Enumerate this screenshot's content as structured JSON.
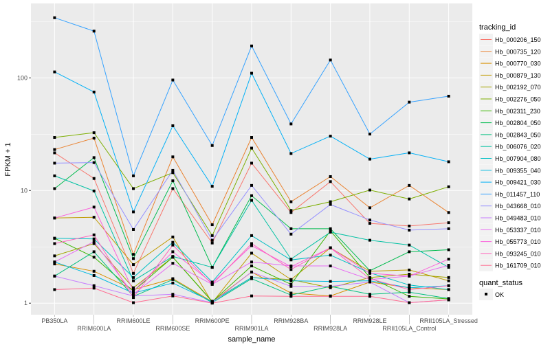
{
  "chart_data": {
    "type": "line",
    "xlabel": "sample_name",
    "ylabel": "FPKM + 1",
    "y_scale": "log10",
    "ylim": [
      0.79,
      458
    ],
    "y_ticks": [
      1,
      10,
      100
    ],
    "y_tick_labels": [
      "1",
      "10",
      "100"
    ],
    "grid": true,
    "categories": [
      "PB350LA",
      "RRIM600LA",
      "RRIM600LE",
      "RRIM600SE",
      "RRIM600PE",
      "RRIM901LA",
      "RRIM928BA",
      "RRIM928LA",
      "RRIM928LE",
      "RRII105LA_Control",
      "RRII105LA_Stressed"
    ],
    "legend_position": "right",
    "legend_title": "tracking_id",
    "shape_legend_title": "quant_status",
    "shape_legend_items": [
      "OK"
    ],
    "series": [
      {
        "name": "Hb_000206_150",
        "color": "#F8766D",
        "values": [
          21.6,
          12.8,
          1.84,
          10.4,
          3.42,
          17.5,
          6.38,
          12.0,
          5.11,
          4.84,
          5.18
        ]
      },
      {
        "name": "Hb_000735_120",
        "color": "#EA8331",
        "values": [
          23.1,
          29.2,
          2.71,
          19.9,
          4.97,
          29.6,
          7.95,
          13.3,
          7.03,
          11.1,
          6.38
        ]
      },
      {
        "name": "Hb_000770_030",
        "color": "#D89000",
        "values": [
          2.23,
          1.92,
          1.32,
          1.65,
          1.03,
          1.89,
          1.23,
          1.16,
          1.54,
          1.37,
          1.32
        ]
      },
      {
        "name": "Hb_000879_130",
        "color": "#C09B00",
        "values": [
          5.7,
          5.79,
          2.2,
          3.87,
          1.01,
          2.78,
          1.62,
          3.1,
          1.92,
          1.97,
          1.58
        ]
      },
      {
        "name": "Hb_002192_070",
        "color": "#A3A500",
        "values": [
          2.63,
          3.38,
          1.37,
          2.56,
          1.04,
          1.69,
          1.62,
          1.37,
          1.69,
          1.81,
          1.69
        ]
      },
      {
        "name": "Hb_002276_050",
        "color": "#7CAE00",
        "values": [
          29.6,
          32.6,
          10.4,
          14.4,
          3.98,
          23.8,
          6.65,
          7.95,
          10.1,
          8.41,
          10.8
        ]
      },
      {
        "name": "Hb_002311_230",
        "color": "#39B600",
        "values": [
          3.77,
          2.56,
          1.28,
          2.56,
          1.03,
          2.14,
          1.47,
          4.39,
          1.69,
          1.15,
          1.09
        ]
      },
      {
        "name": "Hb_002804_050",
        "color": "#00BB4E",
        "values": [
          10.4,
          19.6,
          2.49,
          12.2,
          2.08,
          9.0,
          4.58,
          4.58,
          1.94,
          2.86,
          2.98
        ]
      },
      {
        "name": "Hb_002843_050",
        "color": "#00BF7D",
        "values": [
          1.74,
          2.86,
          1.15,
          1.62,
          1.01,
          1.65,
          1.18,
          1.41,
          1.2,
          1.25,
          1.1
        ]
      },
      {
        "name": "Hb_006076_020",
        "color": "#00C1A3",
        "values": [
          13.5,
          9.91,
          1.58,
          2.6,
          2.08,
          8.18,
          2.46,
          4.27,
          3.62,
          3.28,
          2.08
        ]
      },
      {
        "name": "Hb_007904_080",
        "color": "#00BFC4",
        "values": [
          3.77,
          3.72,
          1.69,
          3.47,
          1.54,
          3.98,
          2.42,
          2.67,
          1.86,
          1.45,
          1.32
        ]
      },
      {
        "name": "Hb_009355_040",
        "color": "#00BAE0",
        "values": [
          2.32,
          1.76,
          1.23,
          1.51,
          1.03,
          1.69,
          1.58,
          1.56,
          1.58,
          1.37,
          1.43
        ]
      },
      {
        "name": "Hb_009421_030",
        "color": "#00B0F6",
        "values": [
          113,
          74.9,
          6.46,
          37.6,
          10.9,
          110,
          21.3,
          30.4,
          19.0,
          21.6,
          18.0
        ]
      },
      {
        "name": "Hb_011457_110",
        "color": "#35A2FF",
        "values": [
          342,
          260,
          13.5,
          95.7,
          25.1,
          192,
          39.0,
          144,
          31.7,
          60.9,
          68.8
        ]
      },
      {
        "name": "Hb_043668_010",
        "color": "#9590FF",
        "values": [
          17.5,
          17.7,
          4.51,
          15.1,
          3.62,
          11.1,
          4.1,
          7.52,
          5.47,
          4.45,
          4.58
        ]
      },
      {
        "name": "Hb_049483_010",
        "color": "#C77CFF",
        "values": [
          1.74,
          1.43,
          1.16,
          1.2,
          1.01,
          1.89,
          1.41,
          1.41,
          1.54,
          1.01,
          1.07
        ]
      },
      {
        "name": "Hb_053337_010",
        "color": "#E76BF3",
        "values": [
          2.32,
          3.52,
          1.2,
          2.26,
          1.47,
          2.32,
          2.14,
          2.14,
          1.62,
          1.74,
          2.17
        ]
      },
      {
        "name": "Hb_055773_010",
        "color": "#FA62DB",
        "values": [
          5.7,
          7.13,
          1.28,
          2.86,
          1.51,
          3.24,
          2.11,
          3.1,
          1.84,
          1.74,
          2.46
        ]
      },
      {
        "name": "Hb_093245_010",
        "color": "#FF62BC",
        "values": [
          3.38,
          4.04,
          1.12,
          3.28,
          1.47,
          3.38,
          1.99,
          3.1,
          1.65,
          1.32,
          1.43
        ]
      },
      {
        "name": "Hb_161709_010",
        "color": "#FF6C91",
        "values": [
          1.32,
          1.36,
          1.01,
          1.16,
          1.0,
          1.16,
          1.15,
          1.15,
          1.15,
          1.01,
          1.07
        ]
      }
    ]
  }
}
